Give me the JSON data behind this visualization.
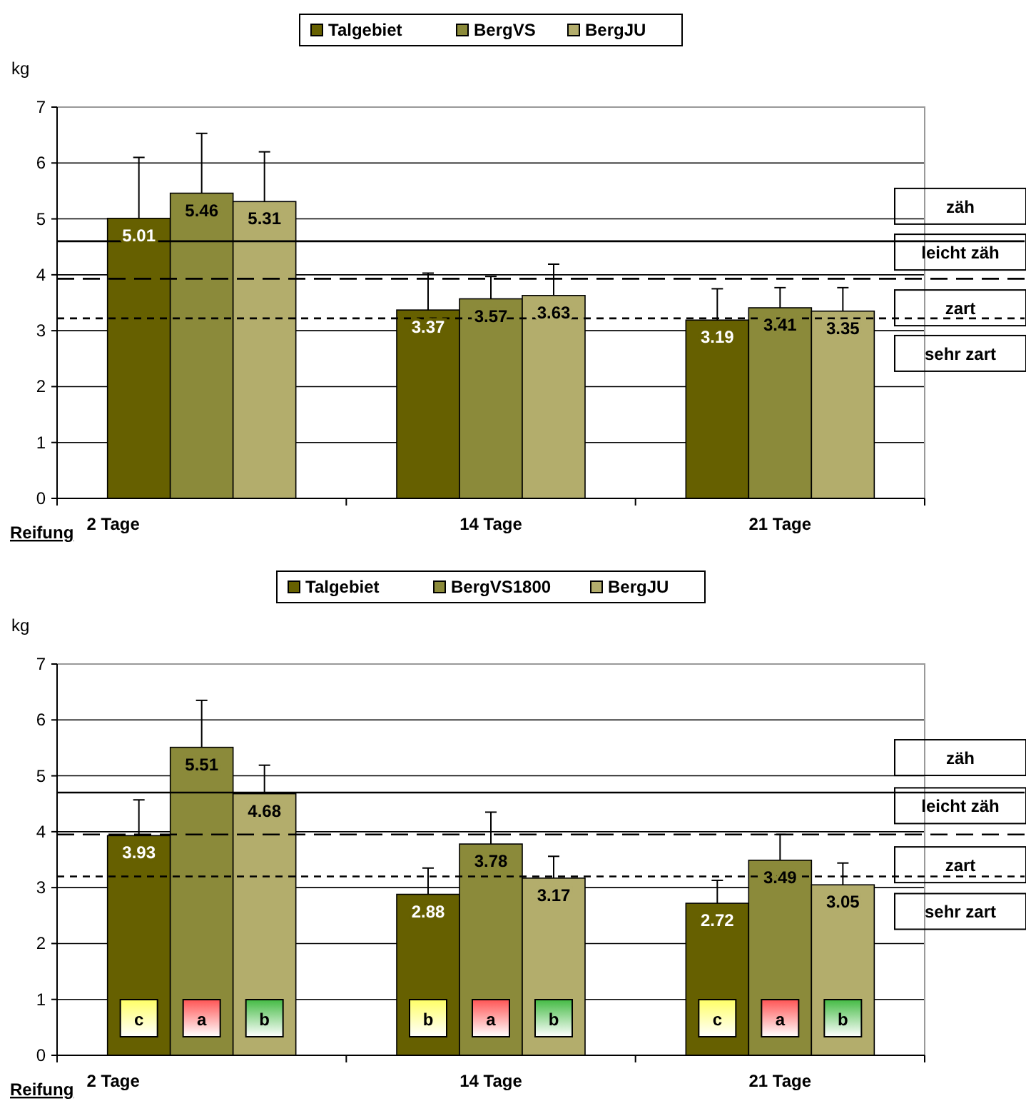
{
  "chart_data": [
    {
      "type": "bar",
      "ylabel": "kg",
      "xlabel": "Reifung",
      "categories": [
        "2 Tage",
        "14 Tage",
        "21 Tage"
      ],
      "series": [
        {
          "name": "Talgebiet",
          "color": "#666000",
          "values": [
            5.01,
            3.37,
            3.19
          ],
          "errors": [
            [
              5.01,
              6.1
            ],
            [
              3.37,
              4.03
            ],
            [
              3.19,
              3.75
            ]
          ]
        },
        {
          "name": "BergVS",
          "color": "#8b8a3a",
          "values": [
            5.46,
            3.57,
            3.41
          ],
          "errors": [
            [
              5.46,
              6.53
            ],
            [
              3.57,
              3.97
            ],
            [
              3.41,
              3.77
            ]
          ]
        },
        {
          "name": "BergJU",
          "color": "#b3ad6c",
          "values": [
            5.31,
            3.63,
            3.35
          ],
          "errors": [
            [
              5.31,
              6.2
            ],
            [
              3.63,
              4.19
            ],
            [
              3.35,
              3.77
            ]
          ]
        }
      ],
      "ylim": [
        0,
        7
      ],
      "yticks": [
        0,
        1,
        2,
        3,
        4,
        5,
        6,
        7
      ],
      "grid": "y",
      "legend": "top",
      "data_labels": true,
      "ref_lines": [
        {
          "axis": "y",
          "value": 4.6,
          "line_style": "solid"
        },
        {
          "axis": "y",
          "value": 3.93,
          "line_style": "dashed"
        },
        {
          "axis": "y",
          "value": 3.22,
          "line_style": "dotted"
        }
      ],
      "annotations": [
        "zäh",
        "leicht zäh",
        "zart",
        "sehr zart"
      ]
    },
    {
      "type": "bar",
      "ylabel": "kg",
      "xlabel": "Reifung",
      "categories": [
        "2 Tage",
        "14 Tage",
        "21 Tage"
      ],
      "series": [
        {
          "name": "Talgebiet",
          "color": "#666000",
          "values": [
            3.93,
            2.88,
            2.72
          ],
          "errors": [
            [
              3.93,
              4.57
            ],
            [
              2.88,
              3.35
            ],
            [
              2.72,
              3.13
            ]
          ]
        },
        {
          "name": "BergVS1800",
          "color": "#8b8a3a",
          "values": [
            5.51,
            3.78,
            3.49
          ],
          "errors": [
            [
              5.51,
              6.35
            ],
            [
              3.78,
              4.35
            ],
            [
              3.49,
              3.95
            ]
          ]
        },
        {
          "name": "BergJU",
          "color": "#b3ad6c",
          "values": [
            4.68,
            3.17,
            3.05
          ],
          "errors": [
            [
              4.68,
              5.19
            ],
            [
              3.17,
              3.56
            ],
            [
              3.05,
              3.44
            ]
          ]
        }
      ],
      "ylim": [
        0,
        7
      ],
      "yticks": [
        0,
        1,
        2,
        3,
        4,
        5,
        6,
        7
      ],
      "grid": "y",
      "legend": "top",
      "data_labels": true,
      "ref_lines": [
        {
          "axis": "y",
          "value": 4.7,
          "line_style": "solid"
        },
        {
          "axis": "y",
          "value": 3.95,
          "line_style": "dashed"
        },
        {
          "axis": "y",
          "value": 3.2,
          "line_style": "dotted"
        }
      ],
      "annotations": [
        "zäh",
        "leicht zäh",
        "zart",
        "sehr zart",
        "c",
        "a",
        "b",
        "b",
        "a",
        "b",
        "c",
        "a",
        "b"
      ]
    }
  ]
}
